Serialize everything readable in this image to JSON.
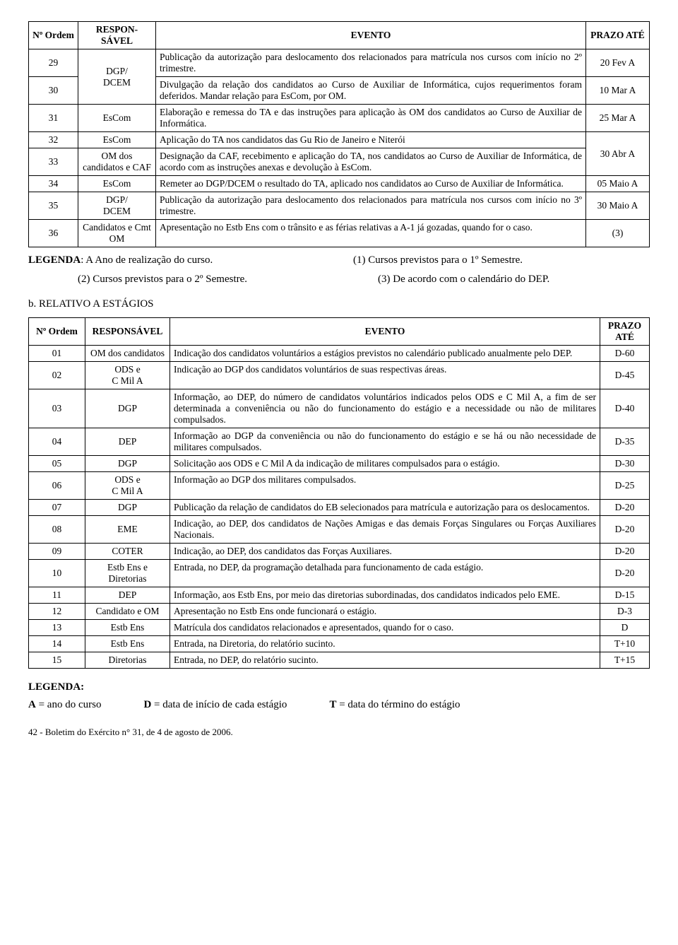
{
  "table1": {
    "headers": {
      "ordem": "Nº Ordem",
      "resp": "RESPON-SÁVEL",
      "evento": "EVENTO",
      "prazo": "PRAZO ATÉ"
    },
    "rows": [
      {
        "n": "29",
        "resp": "DGP/\nDCEM",
        "resp_merge": "start",
        "evento": "Publicação da autorização para deslocamento dos relacionados para matrícula nos cursos com início no 2º trimestre.",
        "prazo": "20 Fev A"
      },
      {
        "n": "30",
        "resp": "",
        "resp_merge": "end",
        "evento": "Divulgação da relação dos candidatos ao Curso de Auxiliar de Informática, cujos requerimentos foram deferidos. Mandar relação para EsCom, por OM.",
        "prazo": "10 Mar A"
      },
      {
        "n": "31",
        "resp": "EsCom",
        "evento": "Elaboração e remessa do TA e das instruções para aplicação às OM dos candidatos ao Curso de Auxiliar de Informática.",
        "prazo": "25 Mar A"
      },
      {
        "n": "32",
        "resp": "EsCom",
        "evento": "Aplicação do TA nos candidatos das Gu Rio de Janeiro e Niterói",
        "prazo": "",
        "prazo_merge": "start"
      },
      {
        "n": "33",
        "resp": "OM dos candidatos e CAF",
        "evento": "Designação da CAF, recebimento e aplicação do TA, nos candidatos ao Curso de Auxiliar de Informática, de acordo com as instruções anexas e devolução à EsCom.",
        "prazo": "30 Abr A",
        "prazo_merge": "end"
      },
      {
        "n": "34",
        "resp": "EsCom",
        "evento": "Remeter ao DGP/DCEM o resultado do TA, aplicado nos candidatos ao Curso de Auxiliar de Informática.",
        "prazo": "05 Maio A"
      },
      {
        "n": "35",
        "resp": "DGP/\nDCEM",
        "evento": "Publicação da autorização para deslocamento dos relacionados para matrícula nos cursos com início no 3º trimestre.",
        "prazo": "30 Maio A"
      },
      {
        "n": "36",
        "resp": "Candidatos e Cmt OM",
        "evento": "Apresentação no Estb Ens com o trânsito e as férias relativas a A-1 já gozadas, quando for o caso.",
        "prazo": "(3)"
      }
    ]
  },
  "legenda1": {
    "l1a_bold": "LEGENDA",
    "l1a_rest": ": A Ano de realização do curso.",
    "l1b": "(1) Cursos previstos para o 1º Semestre.",
    "l2a": "(2) Cursos previstos para o 2º Semestre.",
    "l2b": "(3) De acordo com o calendário do DEP."
  },
  "sectionB": "b. RELATIVO A ESTÁGIOS",
  "table2": {
    "headers": {
      "ordem": "Nº Ordem",
      "resp": "RESPONSÁVEL",
      "evento": "EVENTO",
      "prazo": "PRAZO ATÉ"
    },
    "rows": [
      {
        "n": "01",
        "resp": "OM dos candidatos",
        "evento": "Indicação dos candidatos voluntários a estágios previstos no calendário publicado anualmente pelo DEP.",
        "prazo": "D-60"
      },
      {
        "n": "02",
        "resp": "ODS e\nC Mil A",
        "evento": "Indicação ao DGP dos candidatos voluntários de suas respectivas áreas.",
        "prazo": "D-45"
      },
      {
        "n": "03",
        "resp": "DGP",
        "evento": "Informação, ao DEP, do número de candidatos voluntários indicados pelos ODS e C Mil A, a fim de ser determinada a conveniência ou não do funcionamento do estágio e a necessidade ou não de militares compulsados.",
        "prazo": "D-40"
      },
      {
        "n": "04",
        "resp": "DEP",
        "evento": "Informação ao DGP da conveniência ou não do funcionamento do estágio e se há ou não necessidade de militares compulsados.",
        "prazo": "D-35"
      },
      {
        "n": "05",
        "resp": "DGP",
        "evento": "Solicitação aos ODS e C Mil A da indicação de militares compulsados para o estágio.",
        "prazo": "D-30"
      },
      {
        "n": "06",
        "resp": "ODS e\nC Mil A",
        "evento": "Informação ao DGP dos militares compulsados.",
        "prazo": "D-25"
      },
      {
        "n": "07",
        "resp": "DGP",
        "evento": "Publicação da relação de candidatos do EB selecionados para matrícula e autorização para os deslocamentos.",
        "prazo": "D-20"
      },
      {
        "n": "08",
        "resp": "EME",
        "evento": "Indicação, ao DEP, dos candidatos de Nações Amigas e das demais Forças Singulares ou Forças Auxiliares Nacionais.",
        "prazo": "D-20"
      },
      {
        "n": "09",
        "resp": "COTER",
        "evento": "Indicação, ao DEP, dos candidatos das Forças Auxiliares.",
        "prazo": "D-20"
      },
      {
        "n": "10",
        "resp": "Estb Ens e Diretorias",
        "evento": "Entrada, no DEP, da programação detalhada para funcionamento de cada estágio.",
        "prazo": "D-20"
      },
      {
        "n": "11",
        "resp": "DEP",
        "evento": "Informação, aos Estb Ens, por meio das diretorias subordinadas, dos candidatos indicados pelo EME.",
        "prazo": "D-15"
      },
      {
        "n": "12",
        "resp": "Candidato e OM",
        "evento": "Apresentação no Estb Ens onde funcionará o estágio.",
        "prazo": "D-3"
      },
      {
        "n": "13",
        "resp": "Estb Ens",
        "evento": "Matrícula dos candidatos relacionados e apresentados, quando for o caso.",
        "prazo": "D"
      },
      {
        "n": "14",
        "resp": "Estb Ens",
        "evento": "Entrada, na Diretoria, do relatório sucinto.",
        "prazo": "T+10"
      },
      {
        "n": "15",
        "resp": "Diretorias",
        "evento": "Entrada, no DEP, do relatório sucinto.",
        "prazo": "T+15"
      }
    ]
  },
  "legenda2_title": "LEGENDA:",
  "defs": {
    "a_bold": "A",
    "a_text": " = ano do curso",
    "d_bold": "D",
    "d_text": " = data de início de cada estágio",
    "t_bold": "T",
    "t_text": " = data do término do estágio"
  },
  "footer": "42 - Boletim do Exército n° 31, de 4 de agosto de 2006."
}
